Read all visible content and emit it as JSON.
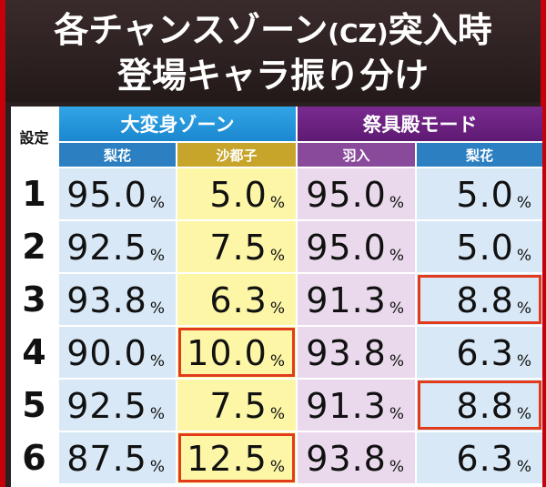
{
  "title": {
    "line1_main": "各チャンスゾーン",
    "line1_paren": "(CZ)",
    "line1_tail": "突入時",
    "line2": "登場キャラ振り分け"
  },
  "table": {
    "setting_header": "設定",
    "groups": [
      {
        "label": "大変身ゾーン",
        "sub": [
          "梨花",
          "沙都子"
        ]
      },
      {
        "label": "祭具殿モード",
        "sub": [
          "羽入",
          "梨花"
        ]
      }
    ],
    "percent_sign": "%",
    "rows": [
      {
        "setting": "1",
        "values": [
          "95.0",
          "5.0",
          "95.0",
          "5.0"
        ]
      },
      {
        "setting": "2",
        "values": [
          "92.5",
          "7.5",
          "95.0",
          "5.0"
        ]
      },
      {
        "setting": "3",
        "values": [
          "93.8",
          "6.3",
          "91.3",
          "8.8"
        ]
      },
      {
        "setting": "4",
        "values": [
          "90.0",
          "10.0",
          "93.8",
          "6.3"
        ]
      },
      {
        "setting": "5",
        "values": [
          "92.5",
          "7.5",
          "91.3",
          "8.8"
        ]
      },
      {
        "setting": "6",
        "values": [
          "87.5",
          "12.5",
          "93.8",
          "6.3"
        ]
      }
    ],
    "highlighted_cells": [
      [
        2,
        3
      ],
      [
        3,
        1
      ],
      [
        4,
        3
      ],
      [
        5,
        1
      ]
    ],
    "colors": {
      "highlight": "#e23b1c",
      "zone_a": "#1b87cf",
      "zone_b": "#5e1a73"
    }
  }
}
